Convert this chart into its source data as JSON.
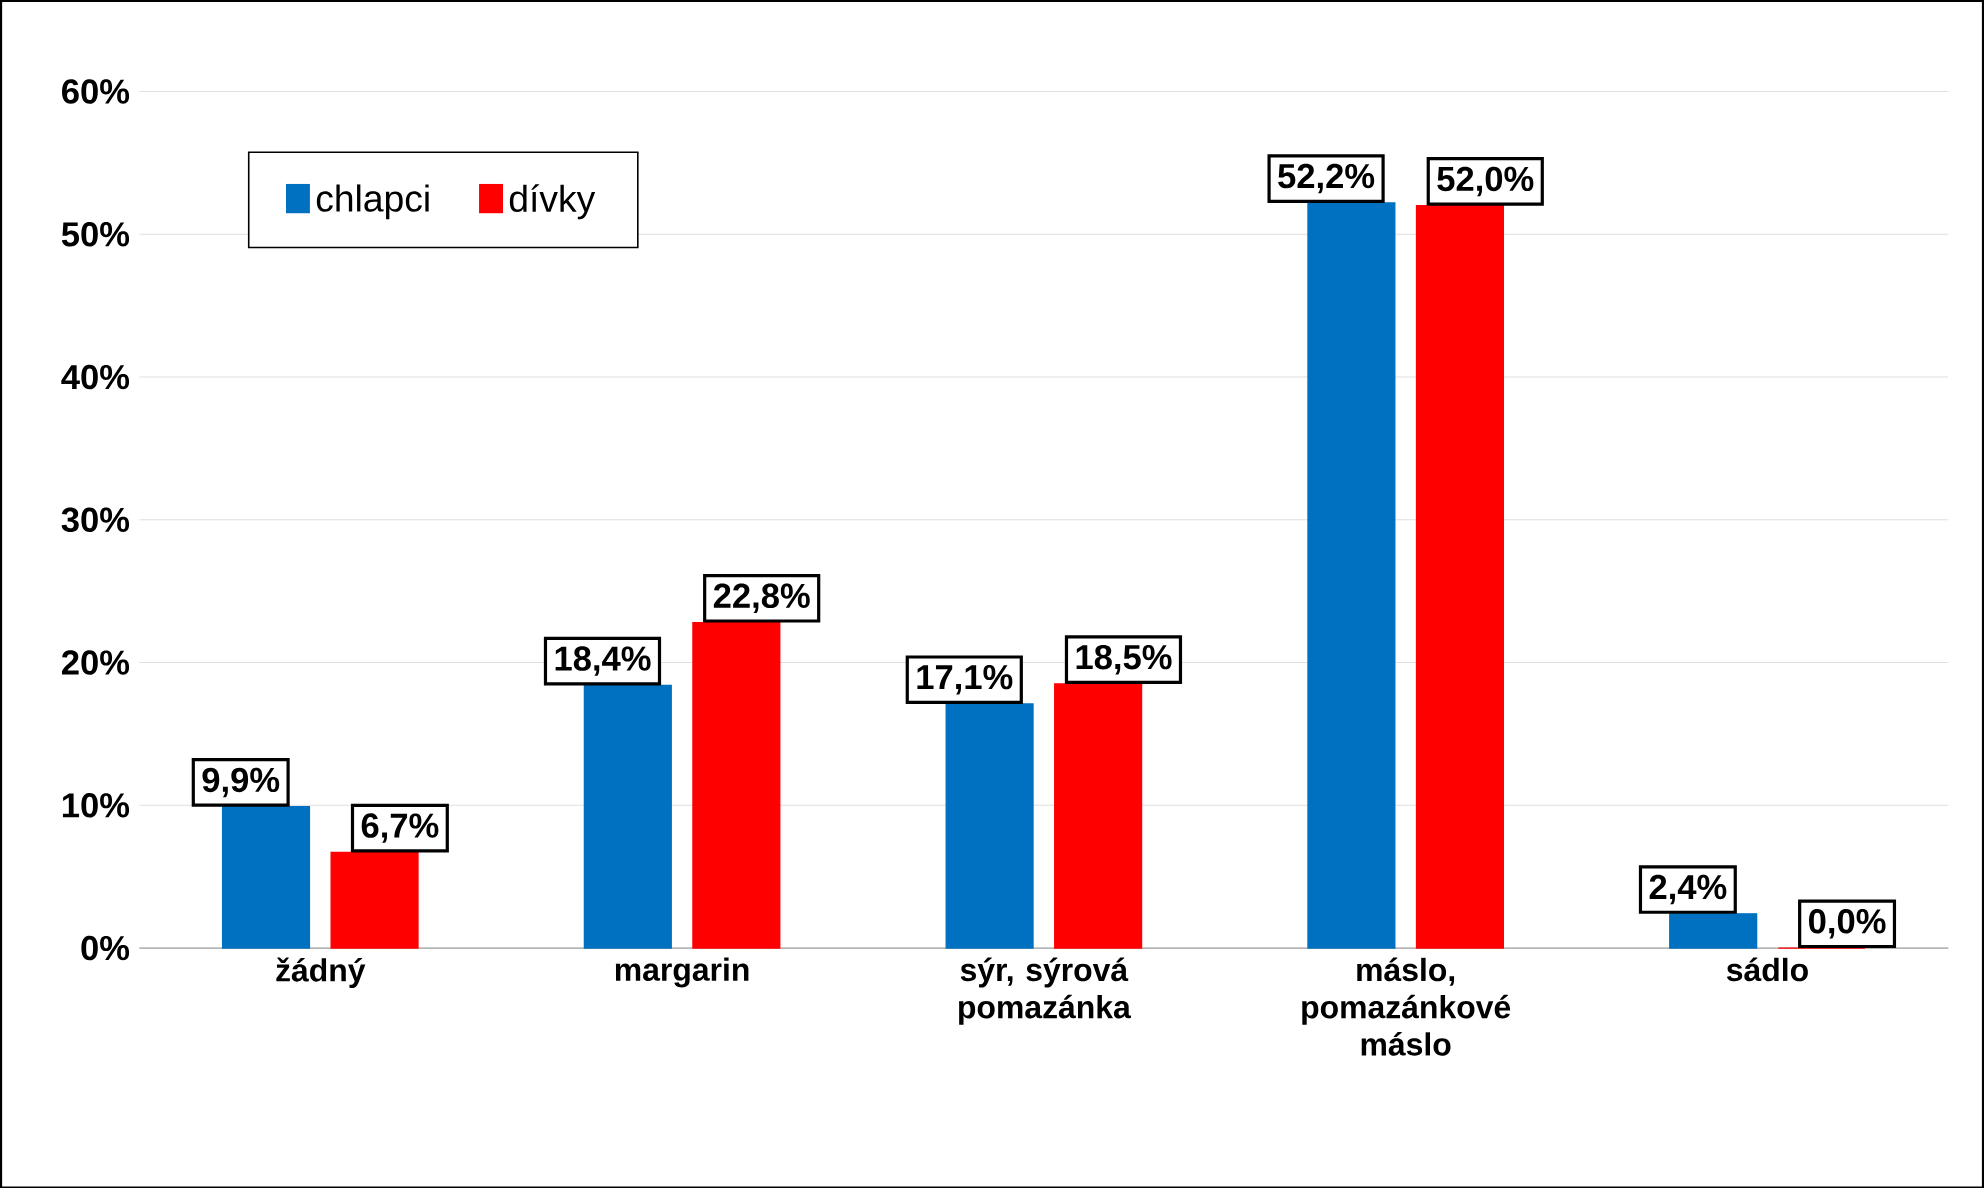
{
  "chart_data": {
    "type": "bar",
    "categories": [
      "žádný",
      "margarin",
      "sýr, sýrová pomazánka",
      "máslo, pomazánkové máslo",
      "sádlo"
    ],
    "series": [
      {
        "name": "chlapci",
        "color": "#0070c0",
        "values": [
          9.9,
          18.4,
          17.1,
          52.2,
          2.4
        ],
        "value_labels": [
          "9,9%",
          "18,4%",
          "17,1%",
          "52,2%",
          "2,4%"
        ]
      },
      {
        "name": "dívky",
        "color": "#ff0000",
        "values": [
          6.7,
          22.8,
          18.5,
          52.0,
          0.0
        ],
        "value_labels": [
          "6,7%",
          "22,8%",
          "18,5%",
          "52,0%",
          "0,0%"
        ]
      }
    ],
    "ylim": [
      0,
      60
    ],
    "yticks": [
      {
        "value": 0,
        "label": "0%"
      },
      {
        "value": 10,
        "label": "10%"
      },
      {
        "value": 20,
        "label": "20%"
      },
      {
        "value": 30,
        "label": "30%"
      },
      {
        "value": 40,
        "label": "40%"
      },
      {
        "value": 50,
        "label": "50%"
      },
      {
        "value": 60,
        "label": "60%"
      }
    ],
    "grid": "y",
    "legend": "top left"
  }
}
